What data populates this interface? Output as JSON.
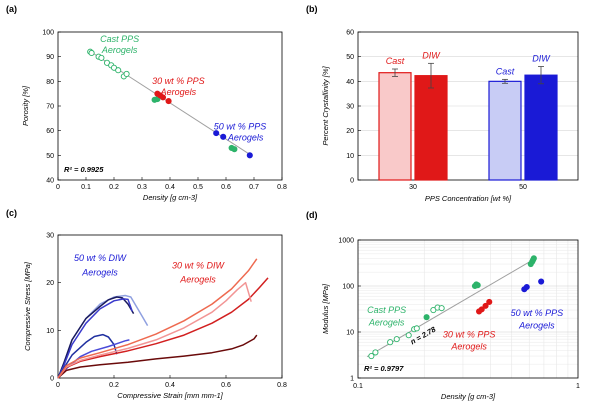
{
  "panels": {
    "a": {
      "label": "(a)"
    },
    "b": {
      "label": "(b)"
    },
    "c": {
      "label": "(c)"
    },
    "d": {
      "label": "(d)"
    }
  },
  "colors": {
    "cast": "#2db36a",
    "ppw30": "#e01818",
    "ppw50": "#1a1ad6",
    "fit": "#a0a0a0"
  },
  "chart_data": [
    {
      "id": "a",
      "type": "scatter",
      "xlabel": "Density [g cm-3]",
      "ylabel": "Porosity [%]",
      "xlim": [
        0,
        0.8
      ],
      "ylim": [
        40,
        100
      ],
      "xticks": [
        0,
        0.1,
        0.2,
        0.3,
        0.4,
        0.5,
        0.6,
        0.7,
        0.8
      ],
      "xtick_labels": [
        "0",
        "0.1",
        "0.2",
        "0.3",
        "0.4",
        "0.5",
        "0.6",
        "0.7",
        "0.8"
      ],
      "yticks": [
        40,
        50,
        60,
        70,
        80,
        90,
        100
      ],
      "ytick_labels": [
        "40",
        "50",
        "60",
        "70",
        "80",
        "90",
        "100"
      ],
      "fit_line": {
        "x": [
          0.11,
          0.69
        ],
        "y": [
          92.5,
          50
        ]
      },
      "series": [
        {
          "color": "cast",
          "filled": false,
          "x": [
            0.115,
            0.12,
            0.145,
            0.155,
            0.175,
            0.19,
            0.2,
            0.215,
            0.235,
            0.245
          ],
          "y": [
            92,
            91.5,
            90,
            89.5,
            87.5,
            86.5,
            85.5,
            84.5,
            82,
            83
          ]
        },
        {
          "color": "cast",
          "filled": true,
          "x": [
            0.345,
            0.355,
            0.62,
            0.63
          ],
          "y": [
            72.5,
            72.8,
            53,
            52.5
          ]
        },
        {
          "color": "ppw30",
          "filled": true,
          "x": [
            0.355,
            0.365,
            0.375,
            0.395
          ],
          "y": [
            75,
            74.3,
            73.5,
            72
          ]
        },
        {
          "color": "ppw50",
          "filled": true,
          "x": [
            0.565,
            0.59,
            0.685
          ],
          "y": [
            59,
            57.5,
            50
          ]
        }
      ],
      "annotations": [
        {
          "text": "Cast PPS",
          "color": "cast",
          "x": 0.22,
          "y": 96
        },
        {
          "text": "Aerogels",
          "color": "cast",
          "x": 0.22,
          "y": 91.5
        },
        {
          "text": "30 wt % PPS",
          "color": "ppw30",
          "x": 0.43,
          "y": 79
        },
        {
          "text": "Aerogels",
          "color": "ppw30",
          "x": 0.43,
          "y": 74.5
        },
        {
          "text": "50 wt % PPS",
          "color": "ppw50",
          "x": 0.65,
          "y": 60.5
        },
        {
          "text": "Aerogels",
          "color": "ppw50",
          "x": 0.67,
          "y": 56
        }
      ],
      "r2_label": "R² = 0.9925"
    },
    {
      "id": "b",
      "type": "bar",
      "xlabel": "PPS Concentration [wt %]",
      "ylabel": "Percent Crystallinity [%]",
      "categories": [
        "30",
        "50"
      ],
      "ylim": [
        0,
        60
      ],
      "yticks": [
        0,
        10,
        20,
        30,
        40,
        50,
        60
      ],
      "ytick_labels": [
        "0",
        "10",
        "20",
        "30",
        "40",
        "50",
        "60"
      ],
      "series": [
        {
          "name": "Cast",
          "values": [
            43.5,
            40
          ],
          "errors": [
            1.5,
            0.8
          ]
        },
        {
          "name": "DIW",
          "values": [
            42.3,
            42.5
          ],
          "errors": [
            5,
            3.5
          ]
        }
      ],
      "bar_labels": [
        {
          "text": "Cast",
          "color": "ppw30",
          "cat": 0,
          "series": 0
        },
        {
          "text": "DIW",
          "color": "ppw30",
          "cat": 0,
          "series": 1
        },
        {
          "text": "Cast",
          "color": "ppw50",
          "cat": 1,
          "series": 0
        },
        {
          "text": "DIW",
          "color": "ppw50",
          "cat": 1,
          "series": 1
        }
      ]
    },
    {
      "id": "c",
      "type": "line",
      "xlabel": "Compressive Strain [mm mm-1]",
      "ylabel": "Compressive Stress [MPa]",
      "xlim": [
        0,
        0.8
      ],
      "ylim": [
        0,
        30
      ],
      "xticks": [
        0,
        0.2,
        0.4,
        0.6,
        0.8
      ],
      "xtick_labels": [
        "0",
        "0.2",
        "0.4",
        "0.6",
        "0.8"
      ],
      "yticks": [
        0,
        10,
        20,
        30
      ],
      "ytick_labels": [
        "0",
        "10",
        "20",
        "30"
      ],
      "series": [
        {
          "color": "#8fa0e0",
          "x": [
            0,
            0.02,
            0.05,
            0.1,
            0.15,
            0.2,
            0.24,
            0.26,
            0.28,
            0.3,
            0.32
          ],
          "y": [
            0,
            3,
            8,
            12.5,
            15.5,
            17,
            17.3,
            17,
            15,
            13,
            11
          ]
        },
        {
          "color": "#1a1a5c",
          "x": [
            0,
            0.02,
            0.05,
            0.1,
            0.15,
            0.18,
            0.21,
            0.23,
            0.25,
            0.27
          ],
          "y": [
            0,
            3,
            8,
            12.5,
            15,
            16.4,
            17,
            16.8,
            15.5,
            13.5
          ]
        },
        {
          "color": "#3a3acc",
          "x": [
            0,
            0.02,
            0.05,
            0.1,
            0.15,
            0.2,
            0.235,
            0.25,
            0.265
          ],
          "y": [
            0,
            2.5,
            7,
            11.5,
            14.5,
            16.2,
            16.6,
            16.5,
            14
          ]
        },
        {
          "color": "#2030a0",
          "x": [
            0,
            0.02,
            0.05,
            0.1,
            0.13,
            0.16,
            0.18,
            0.2,
            0.21
          ],
          "y": [
            0,
            2,
            4.8,
            7.5,
            8.7,
            9.1,
            8.6,
            7,
            5
          ]
        },
        {
          "color": "#4a4ad8",
          "x": [
            0,
            0.03,
            0.08,
            0.12,
            0.18,
            0.21,
            0.24,
            0.255
          ],
          "y": [
            0,
            2,
            4.5,
            5.6,
            6.6,
            7.2,
            7.8,
            8
          ]
        },
        {
          "color": "#6a0a0a",
          "x": [
            0,
            0.03,
            0.08,
            0.15,
            0.25,
            0.35,
            0.45,
            0.55,
            0.62,
            0.66,
            0.7,
            0.71
          ],
          "y": [
            0,
            1.6,
            2.3,
            2.8,
            3.3,
            4,
            4.6,
            5.3,
            6.1,
            6.9,
            8.2,
            9
          ]
        },
        {
          "color": "#d22020",
          "x": [
            0,
            0.03,
            0.08,
            0.15,
            0.25,
            0.35,
            0.45,
            0.55,
            0.62,
            0.68,
            0.72,
            0.75
          ],
          "y": [
            0,
            2.2,
            3.5,
            4.5,
            5.7,
            7.2,
            9,
            11.5,
            13.8,
            16.5,
            19,
            21
          ]
        },
        {
          "color": "#f29595",
          "x": [
            0,
            0.03,
            0.08,
            0.15,
            0.25,
            0.35,
            0.45,
            0.55,
            0.6,
            0.64,
            0.67,
            0.69
          ],
          "y": [
            0,
            2.3,
            3.7,
            4.8,
            6.2,
            8,
            10.5,
            13.8,
            16.2,
            18.5,
            20,
            16
          ]
        },
        {
          "color": "#ee6a50",
          "x": [
            0,
            0.03,
            0.08,
            0.15,
            0.25,
            0.35,
            0.45,
            0.55,
            0.62,
            0.68,
            0.71
          ],
          "y": [
            0,
            2.6,
            4.2,
            5.3,
            7,
            9.2,
            12,
            15.5,
            18.7,
            22.5,
            25
          ]
        }
      ],
      "annotations": [
        {
          "text": "50 wt % DIW",
          "color": "ppw50",
          "x": 0.15,
          "y": 24.5
        },
        {
          "text": "Aerogels",
          "color": "ppw50",
          "x": 0.15,
          "y": 21.5
        },
        {
          "text": "30 wt % DIW",
          "color": "ppw30",
          "x": 0.5,
          "y": 23
        },
        {
          "text": "Aerogels",
          "color": "ppw30",
          "x": 0.5,
          "y": 20
        }
      ]
    },
    {
      "id": "d",
      "type": "scatter",
      "xscale": "log",
      "yscale": "log",
      "xlabel": "Density [g cm-3]",
      "ylabel": "Modulus [MPa]",
      "xlim": [
        0.1,
        1
      ],
      "ylim": [
        1,
        1000
      ],
      "xticks": [
        0.1,
        1
      ],
      "xtick_labels": [
        "0.1",
        "1"
      ],
      "yticks": [
        1,
        10,
        100,
        1000
      ],
      "ytick_labels": [
        "1",
        "10",
        "100",
        "1000"
      ],
      "fit_line": {
        "x": [
          0.11,
          0.63
        ],
        "y": [
          2.9,
          380
        ]
      },
      "series": [
        {
          "color": "cast",
          "filled": false,
          "x": [
            0.115,
            0.12,
            0.14,
            0.15,
            0.17,
            0.18,
            0.185,
            0.22,
            0.23,
            0.24
          ],
          "y": [
            3,
            3.6,
            6,
            7,
            8.5,
            11.5,
            12,
            30,
            34,
            33
          ]
        },
        {
          "color": "cast",
          "filled": true,
          "x": [
            0.205,
            0.34,
            0.345,
            0.35,
            0.61,
            0.62,
            0.625,
            0.63
          ],
          "y": [
            21,
            100,
            108,
            104,
            300,
            340,
            370,
            400
          ]
        },
        {
          "color": "ppw30",
          "filled": true,
          "x": [
            0.355,
            0.365,
            0.38,
            0.395
          ],
          "y": [
            28,
            31,
            37,
            45
          ]
        },
        {
          "color": "ppw50",
          "filled": true,
          "x": [
            0.57,
            0.585,
            0.68
          ],
          "y": [
            85,
            95,
            125
          ]
        }
      ],
      "annotations": [
        {
          "text": "Cast PPS",
          "color": "cast",
          "x": 0.135,
          "y": 26
        },
        {
          "text": "Aerogels",
          "color": "cast",
          "x": 0.135,
          "y": 14
        },
        {
          "text": "30 wt % PPS",
          "color": "ppw30",
          "x": 0.32,
          "y": 7.5
        },
        {
          "text": "Aerogels",
          "color": "ppw30",
          "x": 0.32,
          "y": 4.2
        },
        {
          "text": "50 wt % PPS",
          "color": "ppw50",
          "x": 0.65,
          "y": 22
        },
        {
          "text": "Aerogels",
          "color": "ppw50",
          "x": 0.65,
          "y": 12
        }
      ],
      "slope_label": "n = 2.78",
      "r2_label": "R² = 0.9797"
    }
  ]
}
